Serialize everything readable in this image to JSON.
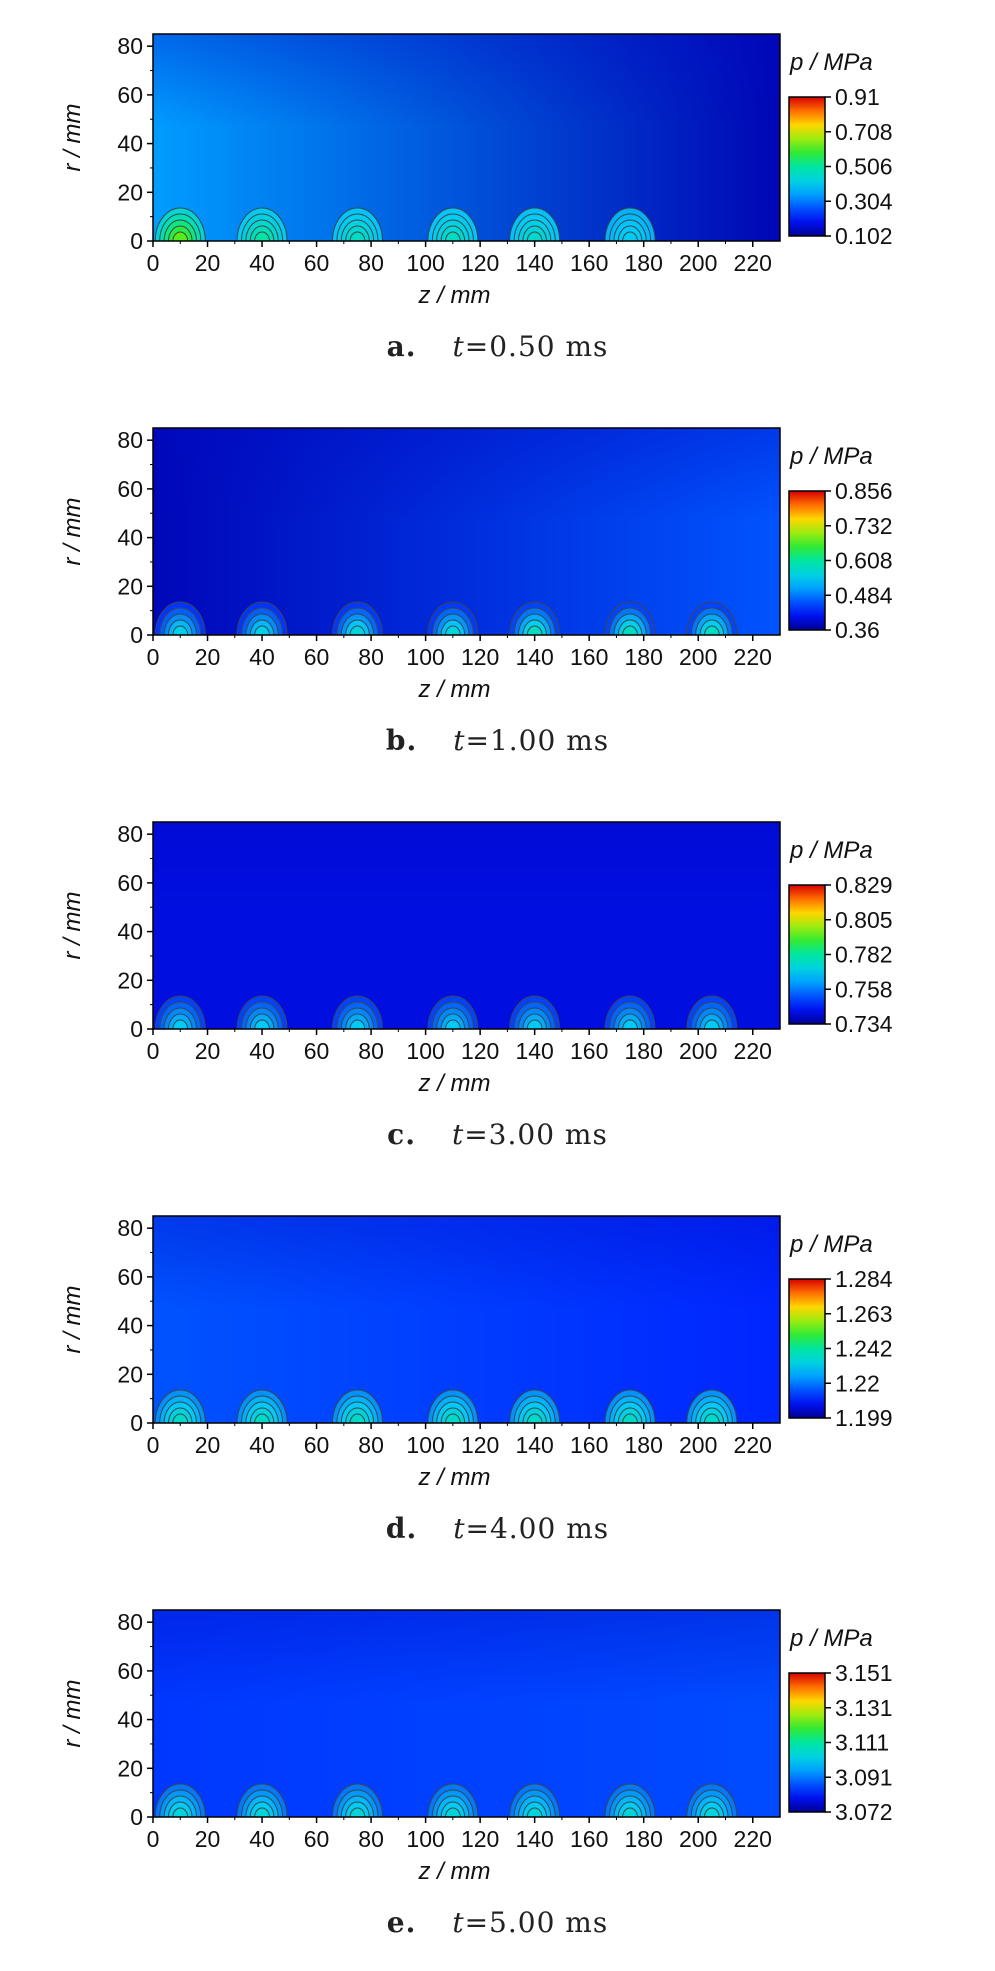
{
  "chart_data": [
    {
      "type": "heatmap",
      "caption": {
        "label": "a.",
        "time": "t=0.50 ms"
      },
      "xlabel": "z / mm",
      "ylabel": "r / mm",
      "colorbar_label": "p / MPa",
      "x_ticks": [
        0,
        20,
        40,
        60,
        80,
        100,
        120,
        140,
        160,
        180,
        200,
        220
      ],
      "y_ticks": [
        0,
        20,
        40,
        60,
        80
      ],
      "xlim": [
        0,
        230
      ],
      "ylim": [
        0,
        85
      ],
      "colorbar_ticks": [
        "0.91",
        "0.708",
        "0.506",
        "0.304",
        "0.102"
      ],
      "vmin": 0.102,
      "vmax": 0.91,
      "hotspots_z": [
        10,
        40,
        75,
        110,
        140,
        175
      ],
      "hotspot_peak": [
        0.62,
        0.5,
        0.46,
        0.46,
        0.45,
        0.4
      ],
      "background": {
        "left": 0.34,
        "right": 0.13,
        "top_dark": 0.0
      }
    },
    {
      "type": "heatmap",
      "caption": {
        "label": "b.",
        "time": "t=1.00 ms"
      },
      "xlabel": "z / mm",
      "ylabel": "r / mm",
      "colorbar_label": "p / MPa",
      "x_ticks": [
        0,
        20,
        40,
        60,
        80,
        100,
        120,
        140,
        160,
        180,
        200,
        220
      ],
      "y_ticks": [
        0,
        20,
        40,
        60,
        80
      ],
      "xlim": [
        0,
        230
      ],
      "ylim": [
        0,
        85
      ],
      "colorbar_ticks": [
        "0.856",
        "0.732",
        "0.608",
        "0.484",
        "0.36"
      ],
      "vmin": 0.36,
      "vmax": 0.856,
      "hotspots_z": [
        10,
        40,
        75,
        110,
        140,
        175,
        205
      ],
      "hotspot_peak": [
        0.55,
        0.55,
        0.56,
        0.56,
        0.58,
        0.58,
        0.58
      ],
      "background": {
        "left": 0.38,
        "right": 0.46,
        "top_dark": 0.0
      }
    },
    {
      "type": "heatmap",
      "caption": {
        "label": "c.",
        "time": "t=3.00 ms"
      },
      "xlabel": "z / mm",
      "ylabel": "r / mm",
      "colorbar_label": "p / MPa",
      "x_ticks": [
        0,
        20,
        40,
        60,
        80,
        100,
        120,
        140,
        160,
        180,
        200,
        220
      ],
      "y_ticks": [
        0,
        20,
        40,
        60,
        80
      ],
      "xlim": [
        0,
        230
      ],
      "ylim": [
        0,
        85
      ],
      "colorbar_ticks": [
        "0.829",
        "0.805",
        "0.782",
        "0.758",
        "0.734"
      ],
      "vmin": 0.734,
      "vmax": 0.829,
      "hotspots_z": [
        10,
        40,
        75,
        110,
        140,
        175,
        205
      ],
      "hotspot_peak": [
        0.768,
        0.768,
        0.768,
        0.768,
        0.768,
        0.768,
        0.768
      ],
      "background": {
        "left": 0.742,
        "right": 0.742,
        "top_dark": 0.0
      }
    },
    {
      "type": "heatmap",
      "caption": {
        "label": "d.",
        "time": "t=4.00 ms"
      },
      "xlabel": "z / mm",
      "ylabel": "r / mm",
      "colorbar_label": "p / MPa",
      "x_ticks": [
        0,
        20,
        40,
        60,
        80,
        100,
        120,
        140,
        160,
        180,
        200,
        220
      ],
      "y_ticks": [
        0,
        20,
        40,
        60,
        80
      ],
      "xlim": [
        0,
        230
      ],
      "ylim": [
        0,
        85
      ],
      "colorbar_ticks": [
        "1.284",
        "1.263",
        "1.242",
        "1.22",
        "1.199"
      ],
      "vmin": 1.199,
      "vmax": 1.284,
      "hotspots_z": [
        10,
        40,
        75,
        110,
        140,
        175,
        205
      ],
      "hotspot_peak": [
        1.236,
        1.236,
        1.236,
        1.236,
        1.236,
        1.236,
        1.236
      ],
      "background": {
        "left": 1.216,
        "right": 1.211,
        "top_dark": 0.0
      }
    },
    {
      "type": "heatmap",
      "caption": {
        "label": "e.",
        "time": "t=5.00 ms"
      },
      "xlabel": "z / mm",
      "ylabel": "r / mm",
      "colorbar_label": "p / MPa",
      "x_ticks": [
        0,
        20,
        40,
        60,
        80,
        100,
        120,
        140,
        160,
        180,
        200,
        220
      ],
      "y_ticks": [
        0,
        20,
        40,
        60,
        80
      ],
      "xlim": [
        0,
        230
      ],
      "ylim": [
        0,
        85
      ],
      "colorbar_ticks": [
        "3.151",
        "3.131",
        "3.111",
        "3.091",
        "3.072"
      ],
      "vmin": 3.072,
      "vmax": 3.151,
      "hotspots_z": [
        10,
        40,
        75,
        110,
        140,
        175,
        205
      ],
      "hotspot_peak": [
        3.104,
        3.104,
        3.104,
        3.104,
        3.104,
        3.104,
        3.104
      ],
      "background": {
        "left": 3.085,
        "right": 3.087,
        "top_dark": 0.0
      }
    }
  ]
}
